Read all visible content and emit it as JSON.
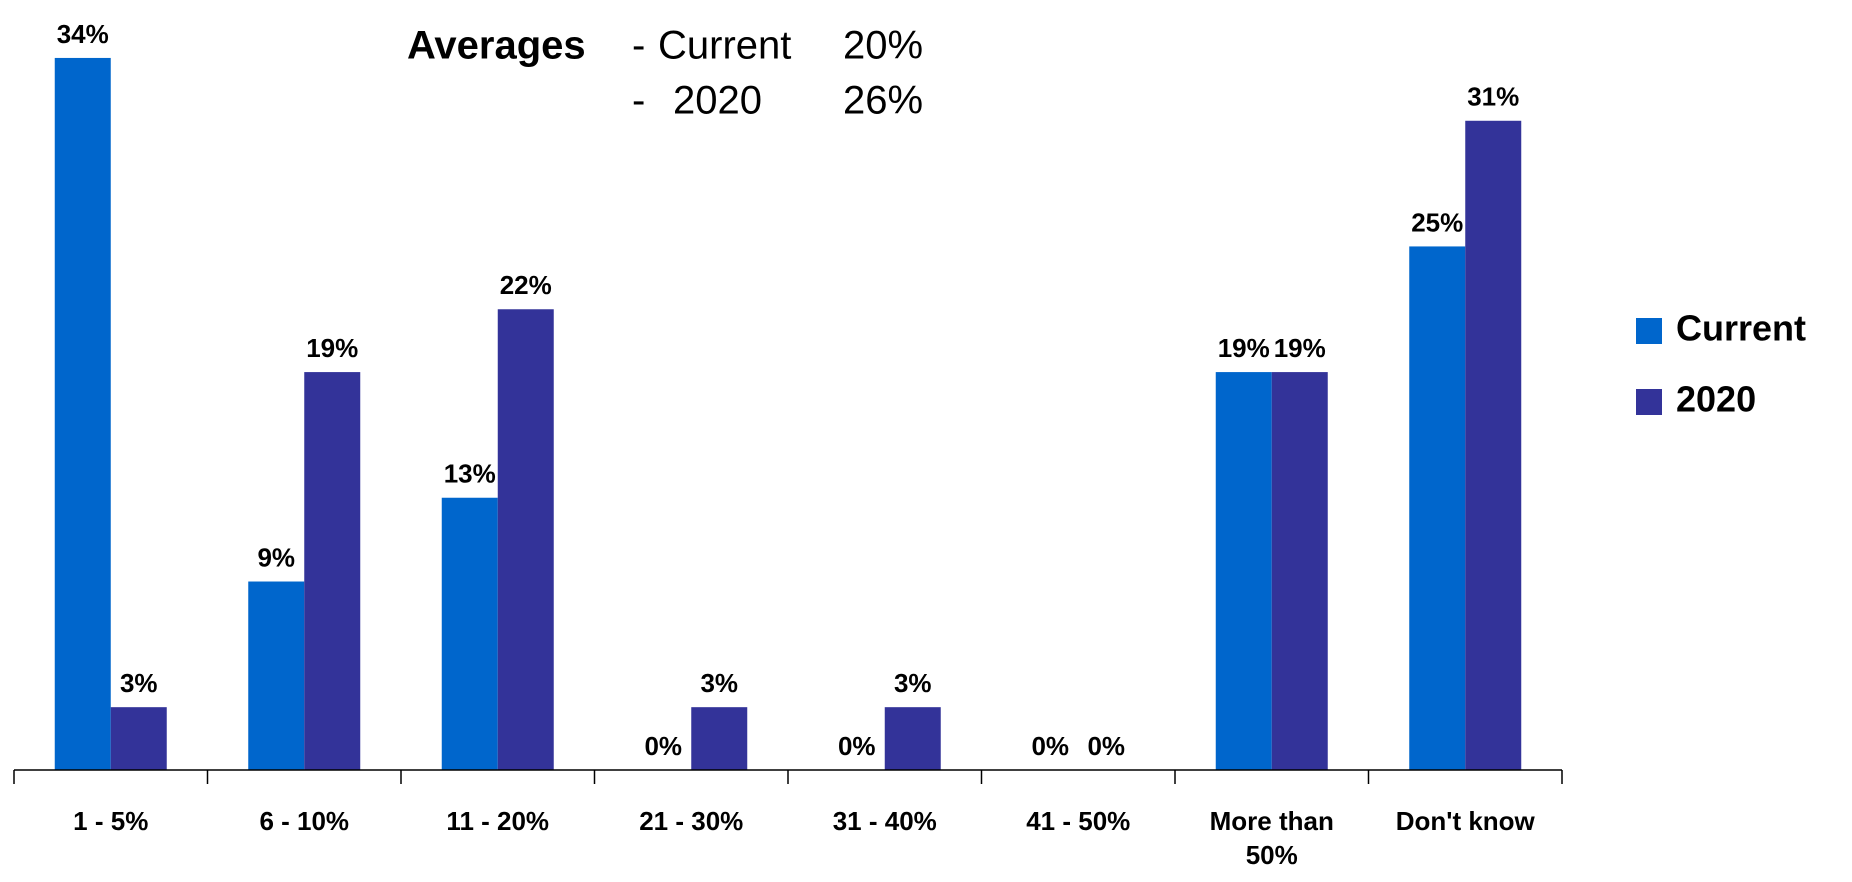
{
  "chart_data": {
    "type": "bar",
    "categories": [
      "1 - 5%",
      "6 - 10%",
      "11 - 20%",
      "21 - 30%",
      "31 - 40%",
      "41 - 50%",
      "More than 50%",
      "Don't know"
    ],
    "series": [
      {
        "name": "Current",
        "color": "#0066cc",
        "values": [
          34,
          9,
          13,
          0,
          0,
          0,
          19,
          25
        ],
        "value_labels": [
          "34%",
          "9%",
          "13%",
          "0%",
          "0%",
          "0%",
          "19%",
          "25%"
        ]
      },
      {
        "name": "2020",
        "color": "#333399",
        "values": [
          3,
          19,
          22,
          3,
          3,
          0,
          19,
          31
        ],
        "value_labels": [
          "3%",
          "19%",
          "22%",
          "3%",
          "3%",
          "0%",
          "19%",
          "31%"
        ]
      }
    ],
    "ylim": [
      0,
      35
    ],
    "legend": "right",
    "averages": {
      "title": "Averages",
      "items": [
        {
          "label": "Current",
          "value": "20%"
        },
        {
          "label": "2020",
          "value": "26%"
        }
      ]
    }
  }
}
